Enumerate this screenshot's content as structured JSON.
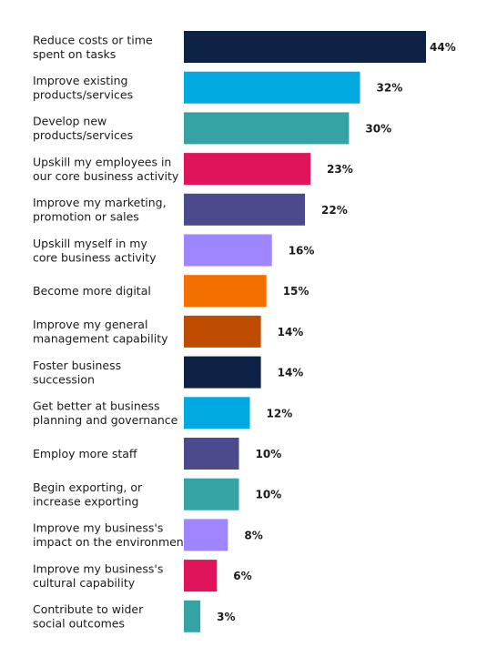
{
  "chart_data": {
    "type": "bar",
    "orientation": "horizontal",
    "title": "",
    "xlabel": "",
    "ylabel": "",
    "xlim": [
      0,
      44
    ],
    "grid": false,
    "legend": "none",
    "value_suffix": "%",
    "categories": [
      [
        "Reduce costs or time",
        "spent on tasks"
      ],
      [
        "Improve existing",
        "products/services"
      ],
      [
        "Develop new",
        "products/services"
      ],
      [
        "Upskill my employees in",
        "our core business activity"
      ],
      [
        "Improve my marketing,",
        "promotion or sales"
      ],
      [
        "Upskill myself in my",
        "core business activity"
      ],
      [
        "Become more digital"
      ],
      [
        "Improve my general",
        "management capability"
      ],
      [
        "Foster business",
        "succession"
      ],
      [
        "Get better at business",
        "planning and governance"
      ],
      [
        "Employ more staff"
      ],
      [
        "Begin exporting, or",
        "increase exporting"
      ],
      [
        "Improve my business's",
        "impact on the environment"
      ],
      [
        "Improve my business's",
        "cultural capability"
      ],
      [
        "Contribute to wider",
        "social outcomes"
      ]
    ],
    "values": [
      44,
      32,
      30,
      23,
      22,
      16,
      15,
      14,
      14,
      12,
      10,
      10,
      8,
      6,
      3
    ],
    "value_labels": [
      "44%",
      "32%",
      "30%",
      "23%",
      "22%",
      "16%",
      "15%",
      "14%",
      "14%",
      "12%",
      "10%",
      "10%",
      "8%",
      "6%",
      "3%"
    ],
    "colors": [
      "#0d2244",
      "#00a9e0",
      "#35a3a3",
      "#e0145a",
      "#4a4a8c",
      "#9f85ff",
      "#f36f00",
      "#bf4c00",
      "#0d2244",
      "#00a9e0",
      "#4a4a8c",
      "#35a3a3",
      "#9f85ff",
      "#e0145a",
      "#35a3a3"
    ]
  }
}
